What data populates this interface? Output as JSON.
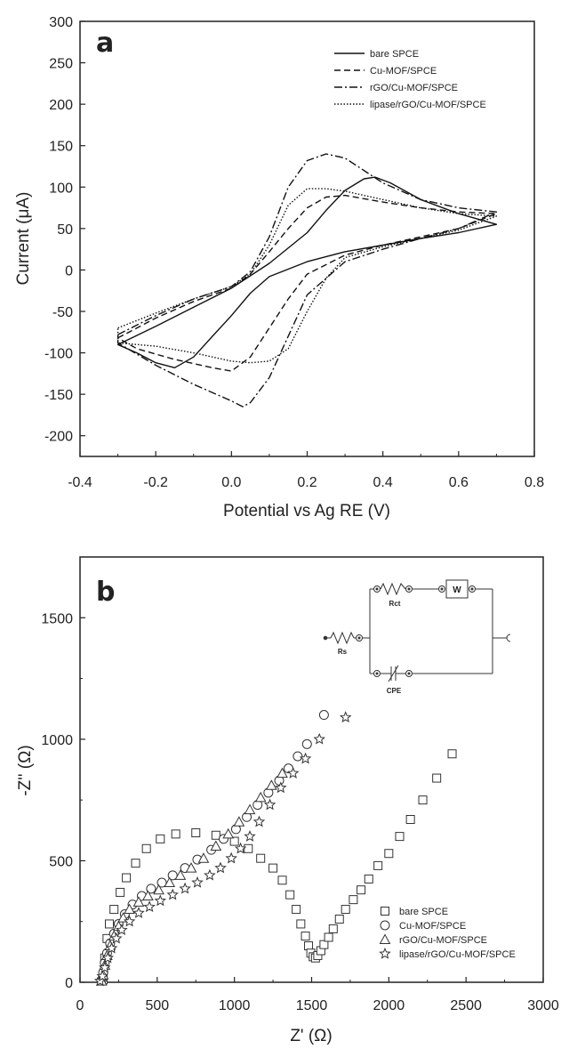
{
  "chart_data": [
    {
      "type": "line",
      "panel_label": "a",
      "xlabel": "Potential vs Ag RE (V)",
      "ylabel": "Current (μA)",
      "xlim": [
        -0.4,
        0.8
      ],
      "ylim": [
        -225,
        300
      ],
      "x_ticks": [
        "-0.4",
        "-0.2",
        "0.0",
        "0.2",
        "0.4",
        "0.6",
        "0.8"
      ],
      "y_ticks": [
        "-200",
        "-150",
        "-100",
        "-50",
        "0",
        "50",
        "100",
        "150",
        "200",
        "250",
        "300"
      ],
      "legend_position": "top-right",
      "series": [
        {
          "name": "bare SPCE",
          "style": "solid",
          "forward": [
            [
              -0.3,
              -90
            ],
            [
              -0.2,
              -68
            ],
            [
              -0.1,
              -45
            ],
            [
              0.0,
              -22
            ],
            [
              0.1,
              8
            ],
            [
              0.2,
              45
            ],
            [
              0.25,
              72
            ],
            [
              0.3,
              96
            ],
            [
              0.35,
              110
            ],
            [
              0.38,
              112
            ],
            [
              0.42,
              105
            ],
            [
              0.5,
              85
            ],
            [
              0.6,
              68
            ],
            [
              0.7,
              55
            ]
          ],
          "reverse": [
            [
              0.7,
              55
            ],
            [
              0.6,
              45
            ],
            [
              0.5,
              38
            ],
            [
              0.4,
              30
            ],
            [
              0.3,
              22
            ],
            [
              0.2,
              10
            ],
            [
              0.1,
              -8
            ],
            [
              0.05,
              -28
            ],
            [
              0.0,
              -55
            ],
            [
              -0.05,
              -80
            ],
            [
              -0.1,
              -105
            ],
            [
              -0.15,
              -118
            ],
            [
              -0.2,
              -112
            ],
            [
              -0.25,
              -100
            ],
            [
              -0.3,
              -90
            ]
          ]
        },
        {
          "name": "Cu-MOF/SPCE",
          "style": "dashed",
          "forward": [
            [
              -0.3,
              -82
            ],
            [
              -0.2,
              -58
            ],
            [
              -0.1,
              -38
            ],
            [
              0.0,
              -22
            ],
            [
              0.05,
              -5
            ],
            [
              0.1,
              22
            ],
            [
              0.15,
              50
            ],
            [
              0.2,
              75
            ],
            [
              0.25,
              88
            ],
            [
              0.3,
              90
            ],
            [
              0.4,
              82
            ],
            [
              0.5,
              75
            ],
            [
              0.6,
              70
            ],
            [
              0.7,
              68
            ]
          ],
          "reverse": [
            [
              0.7,
              68
            ],
            [
              0.6,
              50
            ],
            [
              0.5,
              40
            ],
            [
              0.4,
              30
            ],
            [
              0.3,
              18
            ],
            [
              0.2,
              -5
            ],
            [
              0.15,
              -35
            ],
            [
              0.1,
              -70
            ],
            [
              0.05,
              -105
            ],
            [
              0.0,
              -122
            ],
            [
              -0.05,
              -118
            ],
            [
              -0.15,
              -108
            ],
            [
              -0.25,
              -95
            ],
            [
              -0.3,
              -82
            ]
          ]
        },
        {
          "name": "rGO/Cu-MOF/SPCE",
          "style": "dashdot",
          "forward": [
            [
              -0.3,
              -78
            ],
            [
              -0.2,
              -55
            ],
            [
              -0.1,
              -35
            ],
            [
              0.0,
              -20
            ],
            [
              0.05,
              -2
            ],
            [
              0.1,
              40
            ],
            [
              0.15,
              100
            ],
            [
              0.2,
              132
            ],
            [
              0.25,
              140
            ],
            [
              0.3,
              135
            ],
            [
              0.4,
              105
            ],
            [
              0.5,
              85
            ],
            [
              0.6,
              75
            ],
            [
              0.7,
              70
            ]
          ],
          "reverse": [
            [
              0.7,
              70
            ],
            [
              0.6,
              50
            ],
            [
              0.5,
              38
            ],
            [
              0.4,
              25
            ],
            [
              0.3,
              10
            ],
            [
              0.2,
              -30
            ],
            [
              0.15,
              -80
            ],
            [
              0.1,
              -130
            ],
            [
              0.05,
              -160
            ],
            [
              0.03,
              -165
            ],
            [
              0.0,
              -158
            ],
            [
              -0.1,
              -138
            ],
            [
              -0.2,
              -115
            ],
            [
              -0.3,
              -88
            ]
          ]
        },
        {
          "name": "lipase/rGO/Cu-MOF/SPCE",
          "style": "dotted",
          "forward": [
            [
              -0.3,
              -70
            ],
            [
              -0.2,
              -52
            ],
            [
              -0.1,
              -35
            ],
            [
              0.0,
              -20
            ],
            [
              0.05,
              -5
            ],
            [
              0.1,
              30
            ],
            [
              0.15,
              78
            ],
            [
              0.2,
              98
            ],
            [
              0.25,
              98
            ],
            [
              0.3,
              95
            ],
            [
              0.4,
              85
            ],
            [
              0.5,
              75
            ],
            [
              0.6,
              68
            ],
            [
              0.7,
              65
            ]
          ],
          "reverse": [
            [
              0.7,
              65
            ],
            [
              0.6,
              48
            ],
            [
              0.5,
              38
            ],
            [
              0.4,
              28
            ],
            [
              0.3,
              15
            ],
            [
              0.25,
              -10
            ],
            [
              0.2,
              -50
            ],
            [
              0.15,
              -95
            ],
            [
              0.1,
              -110
            ],
            [
              0.05,
              -112
            ],
            [
              0.0,
              -110
            ],
            [
              -0.1,
              -100
            ],
            [
              -0.2,
              -92
            ],
            [
              -0.3,
              -88
            ]
          ]
        }
      ]
    },
    {
      "type": "scatter",
      "panel_label": "b",
      "xlabel": "Z' (Ω)",
      "ylabel": "-Z'' (Ω)",
      "xlim": [
        0,
        3000
      ],
      "ylim": [
        0,
        1750
      ],
      "x_ticks": [
        "0",
        "500",
        "1000",
        "1500",
        "2000",
        "2500",
        "3000"
      ],
      "y_ticks": [
        "0",
        "500",
        "1000",
        "1500"
      ],
      "legend_position": "bottom-right",
      "inset": {
        "type": "equivalent-circuit",
        "labels": [
          "Rs",
          "Rct",
          "W",
          "CPE"
        ]
      },
      "series": [
        {
          "name": "bare SPCE",
          "marker": "square",
          "points": [
            [
              150,
              10
            ],
            [
              160,
              100
            ],
            [
              175,
              180
            ],
            [
              190,
              240
            ],
            [
              220,
              300
            ],
            [
              260,
              370
            ],
            [
              300,
              430
            ],
            [
              360,
              490
            ],
            [
              430,
              550
            ],
            [
              520,
              590
            ],
            [
              620,
              610
            ],
            [
              750,
              615
            ],
            [
              880,
              605
            ],
            [
              1000,
              580
            ],
            [
              1090,
              550
            ],
            [
              1170,
              510
            ],
            [
              1250,
              470
            ],
            [
              1310,
              420
            ],
            [
              1360,
              360
            ],
            [
              1400,
              300
            ],
            [
              1430,
              240
            ],
            [
              1460,
              190
            ],
            [
              1480,
              150
            ],
            [
              1495,
              120
            ],
            [
              1510,
              105
            ],
            [
              1525,
              100
            ],
            [
              1540,
              110
            ],
            [
              1560,
              130
            ],
            [
              1580,
              155
            ],
            [
              1610,
              185
            ],
            [
              1640,
              220
            ],
            [
              1680,
              260
            ],
            [
              1720,
              300
            ],
            [
              1770,
              340
            ],
            [
              1820,
              380
            ],
            [
              1870,
              425
            ],
            [
              1930,
              480
            ],
            [
              2000,
              530
            ],
            [
              2070,
              600
            ],
            [
              2140,
              670
            ],
            [
              2220,
              750
            ],
            [
              2310,
              840
            ],
            [
              2410,
              940
            ]
          ]
        },
        {
          "name": "Cu-MOF/SPCE",
          "marker": "circle",
          "points": [
            [
              140,
              10
            ],
            [
              150,
              40
            ],
            [
              160,
              80
            ],
            [
              175,
              120
            ],
            [
              195,
              160
            ],
            [
              220,
              200
            ],
            [
              250,
              240
            ],
            [
              290,
              280
            ],
            [
              340,
              320
            ],
            [
              400,
              355
            ],
            [
              460,
              385
            ],
            [
              530,
              410
            ],
            [
              600,
              440
            ],
            [
              680,
              470
            ],
            [
              760,
              505
            ],
            [
              850,
              545
            ],
            [
              930,
              590
            ],
            [
              1010,
              630
            ],
            [
              1080,
              680
            ],
            [
              1150,
              730
            ],
            [
              1220,
              780
            ],
            [
              1290,
              830
            ],
            [
              1350,
              880
            ],
            [
              1410,
              930
            ],
            [
              1470,
              980
            ],
            [
              1580,
              1100
            ]
          ]
        },
        {
          "name": "rGO/Cu-MOF/SPCE",
          "marker": "triangle",
          "points": [
            [
              140,
              5
            ],
            [
              150,
              30
            ],
            [
              160,
              70
            ],
            [
              175,
              110
            ],
            [
              195,
              150
            ],
            [
              220,
              190
            ],
            [
              250,
              230
            ],
            [
              280,
              265
            ],
            [
              320,
              300
            ],
            [
              380,
              330
            ],
            [
              440,
              355
            ],
            [
              510,
              380
            ],
            [
              580,
              410
            ],
            [
              650,
              440
            ],
            [
              720,
              470
            ],
            [
              800,
              510
            ],
            [
              880,
              560
            ],
            [
              960,
              610
            ],
            [
              1030,
              660
            ],
            [
              1100,
              710
            ],
            [
              1170,
              760
            ],
            [
              1240,
              810
            ],
            [
              1310,
              860
            ]
          ]
        },
        {
          "name": "lipase/rGO/Cu-MOF/SPCE",
          "marker": "star",
          "points": [
            [
              130,
              5
            ],
            [
              145,
              25
            ],
            [
              160,
              60
            ],
            [
              180,
              100
            ],
            [
              205,
              140
            ],
            [
              235,
              180
            ],
            [
              270,
              215
            ],
            [
              320,
              250
            ],
            [
              380,
              285
            ],
            [
              450,
              310
            ],
            [
              520,
              335
            ],
            [
              600,
              360
            ],
            [
              680,
              385
            ],
            [
              760,
              410
            ],
            [
              840,
              440
            ],
            [
              910,
              470
            ],
            [
              980,
              510
            ],
            [
              1040,
              550
            ],
            [
              1100,
              600
            ],
            [
              1160,
              660
            ],
            [
              1230,
              730
            ],
            [
              1300,
              800
            ],
            [
              1380,
              860
            ],
            [
              1460,
              920
            ],
            [
              1550,
              1000
            ],
            [
              1720,
              1090
            ]
          ]
        }
      ]
    }
  ]
}
